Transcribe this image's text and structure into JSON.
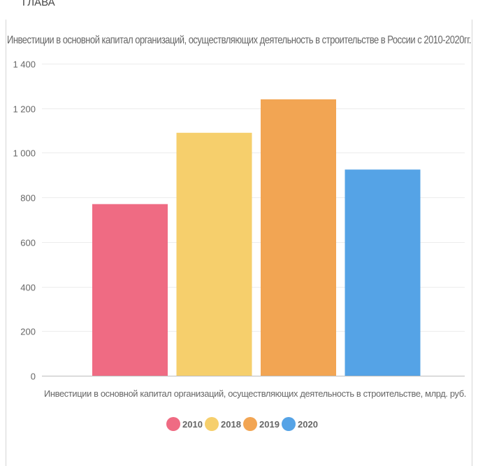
{
  "top_cut_text": "ГЛАВА",
  "chart_data": {
    "type": "bar",
    "title": "Инвестиции в основной капитал организаций, осуществляющих деятельность в строительстве в России с 2010-2020гг.",
    "xlabel": "Инвестиции в основной капитал организаций, осуществляющих деятельность в строительстве, млрд. руб.",
    "ylabel": "",
    "ylim": [
      0,
      1400
    ],
    "yticks": [
      0,
      200,
      400,
      600,
      800,
      1000,
      1200,
      1400
    ],
    "ytick_labels": [
      "0",
      "200",
      "400",
      "600",
      "800",
      "1 000",
      "1 200",
      "1 400"
    ],
    "grid": true,
    "legend_position": "bottom",
    "series": [
      {
        "name": "2010",
        "value": 770,
        "color": "#ef6b83"
      },
      {
        "name": "2018",
        "value": 1090,
        "color": "#f6cf6c"
      },
      {
        "name": "2019",
        "value": 1240,
        "color": "#f2a553"
      },
      {
        "name": "2020",
        "value": 925,
        "color": "#55a3e6"
      }
    ]
  }
}
